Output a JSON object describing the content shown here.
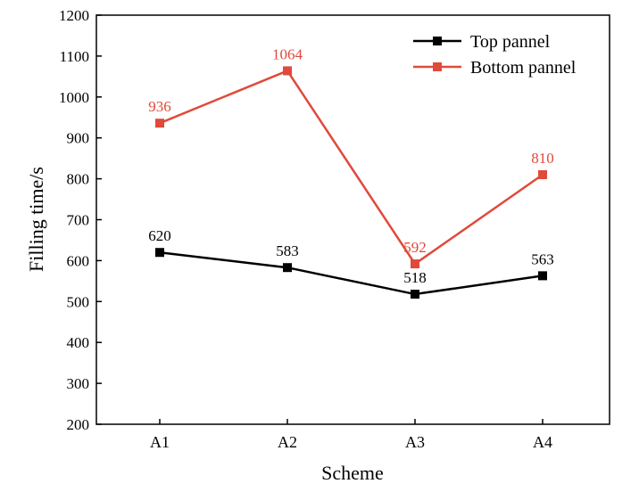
{
  "chart_data": {
    "type": "line",
    "title": "",
    "xlabel": "Scheme",
    "ylabel": "Filling time/s",
    "categories": [
      "A1",
      "A2",
      "A3",
      "A4"
    ],
    "ylim": [
      200,
      1200
    ],
    "yticks": [
      200,
      300,
      400,
      500,
      600,
      700,
      800,
      900,
      1000,
      1100,
      1200
    ],
    "grid": false,
    "legend_position": "top-right",
    "series": [
      {
        "name": "Top pannel",
        "color": "#000000",
        "marker": "square",
        "values": [
          620,
          583,
          518,
          563
        ]
      },
      {
        "name": "Bottom pannel",
        "color": "#e04a3a",
        "marker": "square",
        "values": [
          936,
          1064,
          592,
          810
        ]
      }
    ]
  }
}
